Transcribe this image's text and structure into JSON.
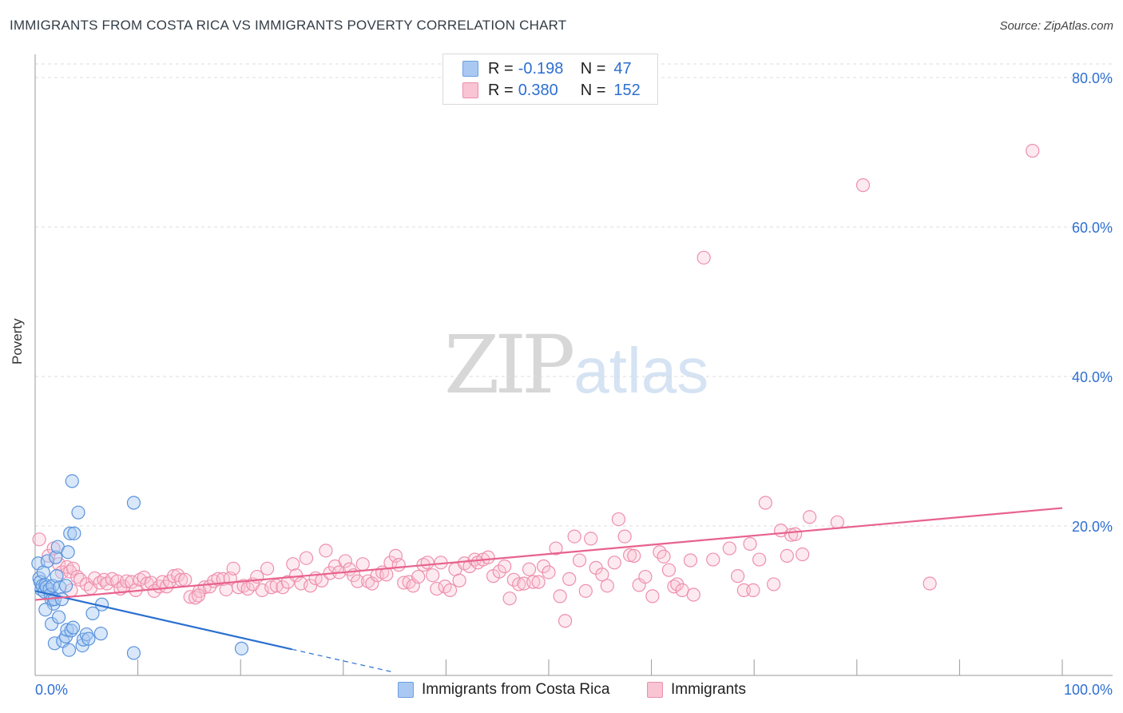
{
  "header": {
    "title": "IMMIGRANTS FROM COSTA RICA VS IMMIGRANTS POVERTY CORRELATION CHART",
    "source": "Source: ZipAtlas.com"
  },
  "watermark": {
    "zip": "ZIP",
    "atlas": "atlas"
  },
  "legend_top": [
    {
      "r_label": "R =",
      "r_value": "-0.198",
      "n_label": "N =",
      "n_value": "47",
      "color": "#a9c9f2",
      "border": "#6b9fe0"
    },
    {
      "r_label": "R =",
      "r_value": "0.380",
      "n_label": "N =",
      "n_value": "152",
      "color": "#f9c4d4",
      "border": "#ee8fad"
    }
  ],
  "legend_bottom": [
    {
      "label": "Immigrants from Costa Rica",
      "color": "#a9c9f2",
      "border": "#6b9fe0"
    },
    {
      "label": "Immigrants",
      "color": "#f9c4d4",
      "border": "#ee8fad"
    }
  ],
  "colors": {
    "blue_fill": "rgba(169,201,242,0.45)",
    "blue_stroke": "#5b93dc",
    "blue_line": "#2a6fd0",
    "pink_fill": "rgba(249,196,212,0.35)",
    "pink_stroke": "#ee8fad",
    "pink_line": "#e8628e",
    "tick_text": "#2e6fd1",
    "grid": "#dcdcdc"
  },
  "chart_data": {
    "type": "scatter",
    "title": "IMMIGRANTS FROM COSTA RICA VS IMMIGRANTS POVERTY CORRELATION CHART",
    "xlabel": "",
    "ylabel": "Poverty",
    "xlim": [
      0,
      100
    ],
    "ylim": [
      0,
      80
    ],
    "x_tick_labels": [
      "0.0%",
      "100.0%"
    ],
    "y_ticks": [
      20,
      40,
      60,
      80
    ],
    "y_tick_labels": [
      "20.0%",
      "40.0%",
      "60.0%",
      "80.0%"
    ],
    "grid": true,
    "legend_position": "top-center",
    "series": [
      {
        "name": "Immigrants from Costa Rica",
        "r": -0.198,
        "n": 47,
        "trend": {
          "x0": 0,
          "y0": 11.3,
          "x1": 25,
          "y1": 3.5,
          "dashed_to_x": 35,
          "dashed_to_y": 0.4
        },
        "points": [
          [
            0.3,
            15.0
          ],
          [
            0.4,
            13.0
          ],
          [
            0.5,
            12.5
          ],
          [
            0.6,
            11.5
          ],
          [
            0.7,
            12.0
          ],
          [
            0.8,
            13.8
          ],
          [
            0.9,
            11.2
          ],
          [
            1.0,
            12.1
          ],
          [
            1.1,
            11.8
          ],
          [
            1.2,
            15.3
          ],
          [
            1.4,
            11.5
          ],
          [
            1.5,
            10.8
          ],
          [
            1.6,
            10.1
          ],
          [
            1.7,
            12.0
          ],
          [
            1.8,
            9.6
          ],
          [
            1.9,
            10.2
          ],
          [
            2.0,
            15.8
          ],
          [
            2.1,
            13.3
          ],
          [
            2.2,
            17.2
          ],
          [
            2.4,
            11.8
          ],
          [
            2.6,
            10.2
          ],
          [
            3.0,
            12.0
          ],
          [
            3.2,
            16.5
          ],
          [
            3.4,
            19.0
          ],
          [
            3.6,
            26.0
          ],
          [
            3.8,
            19.0
          ],
          [
            4.2,
            21.8
          ],
          [
            1.0,
            8.8
          ],
          [
            1.6,
            6.9
          ],
          [
            1.9,
            4.3
          ],
          [
            2.3,
            7.8
          ],
          [
            2.7,
            4.6
          ],
          [
            3.0,
            5.2
          ],
          [
            3.1,
            6.1
          ],
          [
            3.3,
            3.4
          ],
          [
            3.5,
            6.0
          ],
          [
            3.7,
            6.4
          ],
          [
            4.6,
            4.0
          ],
          [
            4.7,
            4.8
          ],
          [
            5.0,
            5.5
          ],
          [
            5.2,
            4.9
          ],
          [
            5.6,
            8.3
          ],
          [
            6.4,
            5.6
          ],
          [
            6.5,
            9.5
          ],
          [
            9.6,
            23.1
          ],
          [
            9.6,
            3.0
          ],
          [
            20.1,
            3.6
          ]
        ]
      },
      {
        "name": "Immigrants",
        "r": 0.38,
        "n": 152,
        "trend": {
          "x0": 0,
          "y0": 10.1,
          "x1": 100,
          "y1": 22.4
        },
        "points": [
          [
            0.4,
            18.2
          ],
          [
            1.3,
            16.0
          ],
          [
            1.8,
            17.0
          ],
          [
            2.3,
            14.9
          ],
          [
            2.6,
            13.8
          ],
          [
            3.1,
            14.5
          ],
          [
            3.4,
            13.9
          ],
          [
            3.7,
            14.3
          ],
          [
            4.1,
            13.2
          ],
          [
            4.4,
            12.8
          ],
          [
            5.0,
            12.2
          ],
          [
            5.4,
            11.7
          ],
          [
            5.8,
            13.0
          ],
          [
            6.3,
            12.4
          ],
          [
            6.7,
            12.8
          ],
          [
            7.0,
            12.3
          ],
          [
            7.5,
            12.9
          ],
          [
            8.0,
            12.6
          ],
          [
            8.3,
            11.6
          ],
          [
            8.6,
            11.9
          ],
          [
            8.9,
            12.6
          ],
          [
            9.4,
            12.5
          ],
          [
            9.8,
            11.4
          ],
          [
            10.2,
            12.8
          ],
          [
            10.6,
            13.1
          ],
          [
            10.9,
            12.3
          ],
          [
            11.3,
            12.4
          ],
          [
            11.6,
            11.3
          ],
          [
            12.1,
            11.9
          ],
          [
            12.4,
            12.5
          ],
          [
            12.8,
            11.9
          ],
          [
            13.1,
            12.6
          ],
          [
            13.5,
            13.3
          ],
          [
            13.9,
            13.4
          ],
          [
            14.2,
            12.8
          ],
          [
            14.6,
            12.8
          ],
          [
            15.1,
            10.5
          ],
          [
            15.6,
            10.4
          ],
          [
            16.0,
            11.3
          ],
          [
            16.5,
            11.8
          ],
          [
            17.0,
            11.9
          ],
          [
            17.4,
            12.6
          ],
          [
            17.8,
            12.9
          ],
          [
            18.3,
            12.9
          ],
          [
            18.6,
            11.5
          ],
          [
            19.0,
            13.0
          ],
          [
            19.3,
            14.3
          ],
          [
            19.8,
            11.8
          ],
          [
            20.3,
            12.0
          ],
          [
            20.7,
            11.6
          ],
          [
            21.2,
            12.2
          ],
          [
            21.6,
            13.2
          ],
          [
            22.1,
            11.4
          ],
          [
            22.6,
            14.3
          ],
          [
            23.0,
            11.8
          ],
          [
            23.5,
            12.0
          ],
          [
            24.1,
            11.8
          ],
          [
            24.6,
            12.5
          ],
          [
            25.1,
            14.9
          ],
          [
            25.4,
            13.4
          ],
          [
            25.9,
            12.3
          ],
          [
            26.4,
            15.7
          ],
          [
            26.8,
            12.0
          ],
          [
            27.3,
            13.0
          ],
          [
            27.9,
            12.7
          ],
          [
            28.3,
            16.7
          ],
          [
            28.7,
            13.7
          ],
          [
            29.2,
            14.6
          ],
          [
            29.6,
            13.8
          ],
          [
            30.2,
            15.3
          ],
          [
            30.6,
            14.2
          ],
          [
            31.0,
            13.4
          ],
          [
            31.4,
            12.6
          ],
          [
            31.9,
            14.9
          ],
          [
            32.4,
            12.6
          ],
          [
            32.8,
            12.3
          ],
          [
            33.3,
            13.4
          ],
          [
            33.8,
            13.8
          ],
          [
            34.2,
            13.5
          ],
          [
            34.6,
            15.1
          ],
          [
            35.1,
            16.0
          ],
          [
            35.4,
            14.8
          ],
          [
            35.9,
            12.4
          ],
          [
            36.4,
            12.5
          ],
          [
            36.8,
            12.0
          ],
          [
            37.3,
            13.2
          ],
          [
            37.8,
            14.8
          ],
          [
            38.2,
            15.1
          ],
          [
            38.7,
            13.4
          ],
          [
            39.1,
            11.6
          ],
          [
            39.5,
            15.1
          ],
          [
            39.9,
            11.9
          ],
          [
            40.4,
            11.4
          ],
          [
            40.9,
            14.2
          ],
          [
            41.3,
            12.7
          ],
          [
            41.8,
            15.0
          ],
          [
            42.3,
            14.6
          ],
          [
            42.8,
            15.5
          ],
          [
            43.1,
            15.1
          ],
          [
            43.6,
            15.5
          ],
          [
            44.1,
            15.8
          ],
          [
            44.6,
            13.3
          ],
          [
            45.2,
            13.9
          ],
          [
            45.7,
            14.6
          ],
          [
            46.2,
            10.3
          ],
          [
            46.6,
            12.8
          ],
          [
            47.1,
            12.2
          ],
          [
            47.6,
            12.3
          ],
          [
            48.1,
            14.2
          ],
          [
            48.5,
            12.5
          ],
          [
            49.0,
            12.5
          ],
          [
            49.5,
            14.6
          ],
          [
            50.0,
            13.8
          ],
          [
            50.7,
            17.0
          ],
          [
            51.1,
            10.6
          ],
          [
            51.6,
            7.3
          ],
          [
            52.0,
            12.9
          ],
          [
            52.5,
            18.6
          ],
          [
            53.0,
            15.4
          ],
          [
            53.6,
            11.3
          ],
          [
            54.1,
            18.3
          ],
          [
            54.6,
            14.4
          ],
          [
            55.2,
            13.5
          ],
          [
            55.7,
            12.0
          ],
          [
            56.4,
            15.1
          ],
          [
            56.8,
            20.9
          ],
          [
            57.4,
            18.6
          ],
          [
            57.9,
            16.1
          ],
          [
            58.3,
            16.0
          ],
          [
            58.8,
            12.1
          ],
          [
            59.4,
            13.2
          ],
          [
            60.1,
            10.6
          ],
          [
            60.8,
            16.5
          ],
          [
            61.2,
            15.9
          ],
          [
            61.7,
            14.1
          ],
          [
            62.2,
            11.9
          ],
          [
            62.5,
            12.2
          ],
          [
            63.0,
            11.4
          ],
          [
            63.8,
            15.4
          ],
          [
            64.1,
            10.8
          ],
          [
            65.1,
            55.9
          ],
          [
            66.0,
            15.5
          ],
          [
            67.6,
            17.0
          ],
          [
            68.4,
            13.3
          ],
          [
            69.0,
            11.4
          ],
          [
            69.6,
            17.6
          ],
          [
            69.9,
            11.4
          ],
          [
            70.5,
            15.5
          ],
          [
            71.1,
            23.1
          ],
          [
            71.9,
            12.2
          ],
          [
            72.6,
            19.4
          ],
          [
            73.2,
            16.0
          ],
          [
            73.6,
            18.8
          ],
          [
            74.0,
            18.9
          ],
          [
            74.7,
            16.2
          ],
          [
            75.4,
            21.2
          ],
          [
            78.1,
            20.5
          ],
          [
            80.6,
            65.6
          ],
          [
            87.1,
            12.3
          ],
          [
            97.1,
            70.2
          ],
          [
            3.5,
            11.4
          ],
          [
            15.9,
            10.7
          ]
        ]
      }
    ]
  }
}
